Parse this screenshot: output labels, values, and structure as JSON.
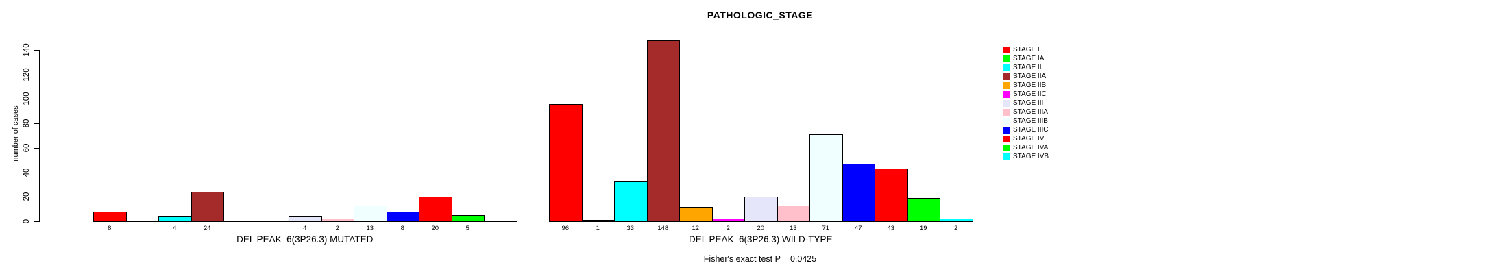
{
  "chart_data": {
    "type": "bar",
    "title": "PATHOLOGIC_STAGE",
    "ylabel": "number of cases",
    "ylim": [
      0,
      140
    ],
    "yticks": [
      0,
      20,
      40,
      60,
      80,
      100,
      120,
      140
    ],
    "grid": false,
    "legend_position": "right",
    "categories": [
      "STAGE I",
      "STAGE IA",
      "STAGE II",
      "STAGE IIA",
      "STAGE IIB",
      "STAGE IIC",
      "STAGE III",
      "STAGE IIIA",
      "STAGE IIIB",
      "STAGE IIIC",
      "STAGE IV",
      "STAGE IVA",
      "STAGE IVB"
    ],
    "colors": [
      "#FF0000",
      "#00FF00",
      "#00FFFF",
      "#A52A2A",
      "#FFA500",
      "#FF00FF",
      "#E6E6FA",
      "#FFC0CB",
      "#F0FFFF",
      "#0000FF",
      "#FF0000",
      "#00FF00",
      "#00FFFF"
    ],
    "series": [
      {
        "name": "DEL PEAK  6(3P26.3) MUTATED",
        "values": [
          8,
          0,
          4,
          24,
          0,
          0,
          4,
          2,
          13,
          8,
          20,
          5,
          0
        ]
      },
      {
        "name": "DEL PEAK  6(3P26.3) WILD-TYPE",
        "values": [
          96,
          1,
          33,
          148,
          12,
          2,
          20,
          13,
          71,
          47,
          43,
          19,
          2
        ]
      }
    ],
    "annotation": "Fisher's exact test P = 0.0425"
  }
}
